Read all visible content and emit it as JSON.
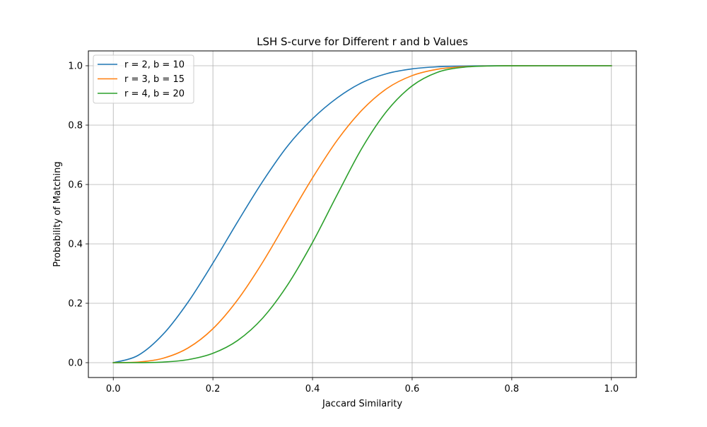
{
  "chart_data": {
    "type": "line",
    "title": "LSH S-curve for Different r and b Values",
    "xlabel": "Jaccard Similarity",
    "ylabel": "Probability of Matching",
    "xlim": [
      -0.05,
      1.05
    ],
    "ylim": [
      -0.05,
      1.05
    ],
    "xticks": [
      0.0,
      0.2,
      0.4,
      0.6,
      0.8,
      1.0
    ],
    "xtick_labels": [
      "0.0",
      "0.2",
      "0.4",
      "0.6",
      "0.8",
      "1.0"
    ],
    "yticks": [
      0.0,
      0.2,
      0.4,
      0.6,
      0.8,
      1.0
    ],
    "ytick_labels": [
      "0.0",
      "0.2",
      "0.4",
      "0.6",
      "0.8",
      "1.0"
    ],
    "grid": true,
    "legend_position": "top-left",
    "x": [
      0.0,
      0.05,
      0.1,
      0.15,
      0.2,
      0.25,
      0.3,
      0.35,
      0.4,
      0.45,
      0.5,
      0.55,
      0.6,
      0.65,
      0.7,
      0.75,
      0.8,
      0.85,
      0.9,
      0.95,
      1.0
    ],
    "series": [
      {
        "name": "r = 2, b = 10",
        "color": "#1f77b4",
        "values": [
          0.0,
          0.0247,
          0.0956,
          0.2036,
          0.3352,
          0.4755,
          0.6106,
          0.7299,
          0.8215,
          0.8923,
          0.9437,
          0.9738,
          0.9894,
          0.9964,
          0.999,
          0.9998,
          1.0,
          1.0,
          1.0,
          1.0,
          1.0
        ]
      },
      {
        "name": "r = 3, b = 15",
        "color": "#ff7f0e",
        "values": [
          0.0,
          0.0019,
          0.0149,
          0.0494,
          0.1143,
          0.2125,
          0.3384,
          0.4811,
          0.6224,
          0.7502,
          0.8518,
          0.9241,
          0.9668,
          0.988,
          0.9965,
          0.9993,
          0.9999,
          1.0,
          1.0,
          1.0,
          1.0
        ]
      },
      {
        "name": "r = 4, b = 20",
        "color": "#2ca02c",
        "values": [
          0.0,
          0.0001,
          0.002,
          0.0101,
          0.0315,
          0.0752,
          0.1503,
          0.2621,
          0.4049,
          0.5672,
          0.7247,
          0.849,
          0.9323,
          0.9775,
          0.9945,
          0.9991,
          0.9999,
          1.0,
          1.0,
          1.0,
          1.0
        ]
      }
    ]
  }
}
